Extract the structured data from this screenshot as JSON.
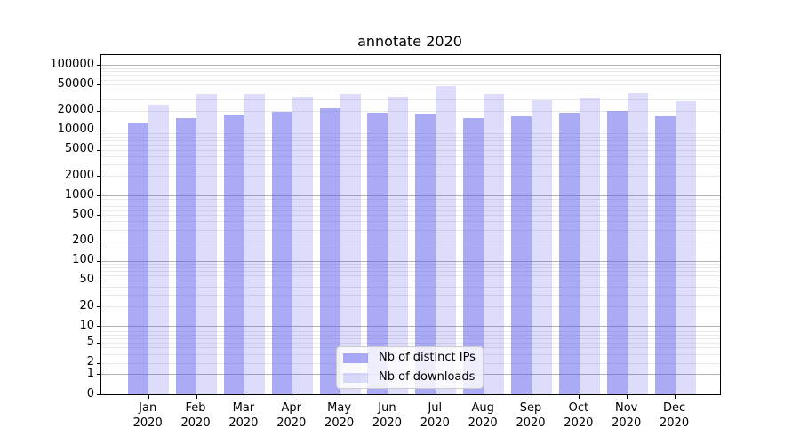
{
  "chart_data": {
    "type": "bar",
    "title": "annotate 2020",
    "categories": [
      "Jan",
      "Feb",
      "Mar",
      "Apr",
      "May",
      "Jun",
      "Jul",
      "Aug",
      "Sep",
      "Oct",
      "Nov",
      "Dec"
    ],
    "x_tick_year": "2020",
    "series": [
      {
        "name": "Nb of distinct IPs",
        "color": "rgba(85,85,235,0.5)",
        "values": [
          13300,
          15500,
          17900,
          19700,
          21700,
          19100,
          18400,
          15500,
          16700,
          19100,
          19900,
          16700
        ]
      },
      {
        "name": "Nb of downloads",
        "color": "rgba(85,85,235,0.2)",
        "values": [
          25200,
          35800,
          36100,
          33100,
          35900,
          32800,
          48000,
          36800,
          29500,
          31800,
          37000,
          28200
        ]
      }
    ],
    "yscale": "symlog",
    "ylim": [
      0,
      150000
    ],
    "y_tick_values": [
      0,
      1,
      2,
      5,
      10,
      20,
      50,
      100,
      200,
      500,
      1000,
      2000,
      5000,
      10000,
      20000,
      50000,
      100000
    ],
    "grid": "both",
    "grid_major_color": "#b2b2b2",
    "grid_minor_color": "#e9e9e9",
    "legend_position": "lower center"
  }
}
